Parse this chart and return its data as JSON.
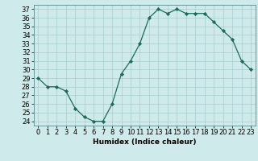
{
  "x": [
    0,
    1,
    2,
    3,
    4,
    5,
    6,
    7,
    8,
    9,
    10,
    11,
    12,
    13,
    14,
    15,
    16,
    17,
    18,
    19,
    20,
    21,
    22,
    23
  ],
  "y": [
    29,
    28,
    28,
    27.5,
    25.5,
    24.5,
    24,
    24,
    26,
    29.5,
    31,
    33,
    36,
    37,
    36.5,
    37,
    36.5,
    36.5,
    36.5,
    35.5,
    34.5,
    33.5,
    31,
    30
  ],
  "line_color": "#1a6b5a",
  "marker": "D",
  "marker_size": 2.2,
  "bg_color": "#ceeaea",
  "grid_color": "#a8cccc",
  "xlabel": "Humidex (Indice chaleur)",
  "ylim": [
    23.5,
    37.5
  ],
  "xlim": [
    -0.5,
    23.5
  ],
  "yticks": [
    24,
    25,
    26,
    27,
    28,
    29,
    30,
    31,
    32,
    33,
    34,
    35,
    36,
    37
  ],
  "xticks": [
    0,
    1,
    2,
    3,
    4,
    5,
    6,
    7,
    8,
    9,
    10,
    11,
    12,
    13,
    14,
    15,
    16,
    17,
    18,
    19,
    20,
    21,
    22,
    23
  ],
  "label_fontsize": 6.5,
  "tick_fontsize": 6.0
}
